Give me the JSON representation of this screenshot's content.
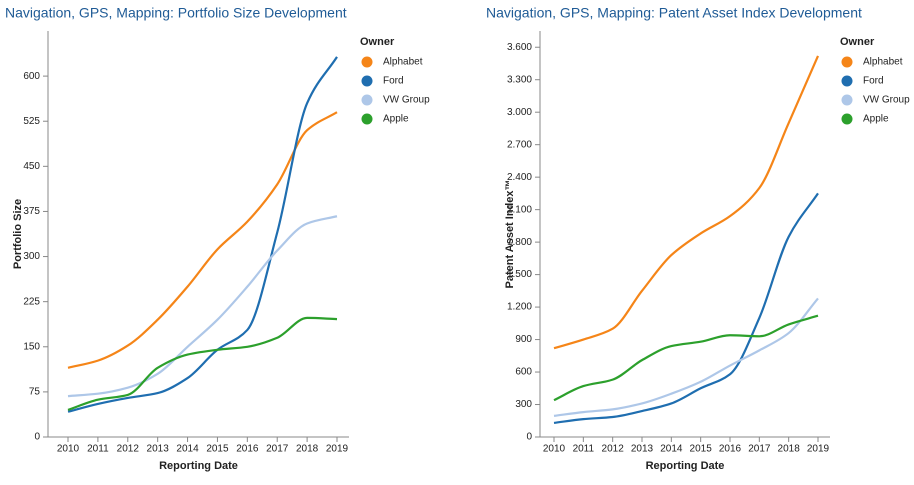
{
  "chart_data": [
    {
      "type": "line",
      "title": "Navigation, GPS, Mapping: Portfolio Size Development",
      "x_label": "Reporting Date",
      "y_label": "Portfolio Size",
      "legend_title": "Owner",
      "categories": [
        "2010",
        "2011",
        "2012",
        "2013",
        "2014",
        "2015",
        "2016",
        "2017",
        "2018",
        "2019"
      ],
      "series": [
        {
          "name": "Alphabet",
          "color": "#f58518",
          "values": [
            115,
            127,
            152,
            195,
            250,
            312,
            358,
            420,
            510,
            540
          ]
        },
        {
          "name": "Ford",
          "color": "#1f6eb0",
          "values": [
            42,
            55,
            65,
            73,
            98,
            145,
            178,
            340,
            555,
            632
          ]
        },
        {
          "name": "VW Group",
          "color": "#aec7e8",
          "values": [
            68,
            72,
            82,
            105,
            150,
            195,
            250,
            310,
            355,
            367
          ]
        },
        {
          "name": "Apple",
          "color": "#2ca02c",
          "values": [
            45,
            62,
            70,
            115,
            137,
            145,
            150,
            165,
            198,
            196
          ]
        }
      ],
      "ylim": [
        0,
        675
      ],
      "yticks": [
        0,
        75,
        150,
        225,
        300,
        375,
        450,
        525,
        600
      ]
    },
    {
      "type": "line",
      "title": "Navigation, GPS, Mapping: Patent Asset Index Development",
      "x_label": "Reporting Date",
      "y_label": "Patent Asset Index™",
      "legend_title": "Owner",
      "categories": [
        "2010",
        "2011",
        "2012",
        "2013",
        "2014",
        "2015",
        "2016",
        "2017",
        "2018",
        "2019"
      ],
      "series": [
        {
          "name": "Alphabet",
          "color": "#f58518",
          "values": [
            820,
            900,
            1000,
            1350,
            1680,
            1880,
            2040,
            2300,
            2900,
            3520
          ]
        },
        {
          "name": "Ford",
          "color": "#1f6eb0",
          "values": [
            130,
            165,
            185,
            240,
            310,
            450,
            580,
            1100,
            1850,
            2250
          ]
        },
        {
          "name": "VW Group",
          "color": "#aec7e8",
          "values": [
            195,
            230,
            255,
            310,
            400,
            510,
            660,
            800,
            960,
            1280
          ]
        },
        {
          "name": "Apple",
          "color": "#2ca02c",
          "values": [
            340,
            470,
            530,
            710,
            840,
            880,
            940,
            930,
            1040,
            1120
          ]
        }
      ],
      "ylim": [
        0,
        3750
      ],
      "yticks": [
        0,
        300,
        600,
        900,
        {
          "value": 1200,
          "label": "1.200"
        },
        {
          "value": 1500,
          "label": "1.500"
        },
        {
          "value": 1800,
          "label": "1.800"
        },
        {
          "value": 2100,
          "label": "2.100"
        },
        {
          "value": 2400,
          "label": "2.400"
        },
        {
          "value": 2700,
          "label": "2.700"
        },
        {
          "value": 3000,
          "label": "3.000"
        },
        {
          "value": 3300,
          "label": "3.300"
        },
        {
          "value": 3600,
          "label": "3.600"
        }
      ]
    }
  ]
}
